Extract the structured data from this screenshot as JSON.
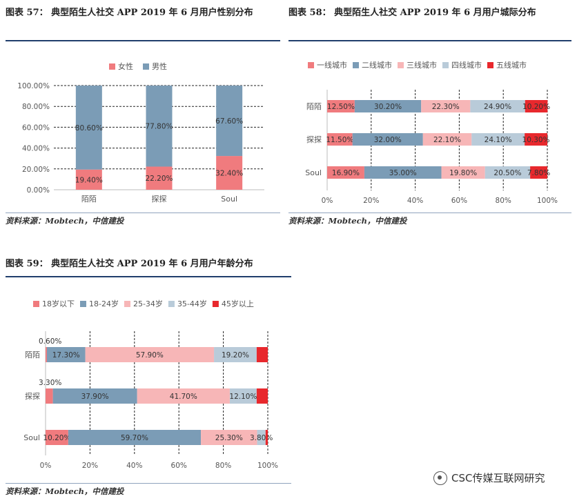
{
  "panels": [
    {
      "title": "图表 57： 典型陌生人社交 APP 2019 年 6 月用户性别分布",
      "source": "资料来源：Mobtech，中信建投"
    },
    {
      "title": "图表 58： 典型陌生人社交 APP 2019 年 6 月用户城际分布",
      "source": "资料来源：Mobtech，中信建投"
    },
    {
      "title": "图表 59： 典型陌生人社交 APP 2019 年 6 月用户年龄分布",
      "source": "资料来源：Mobtech，中信建投"
    }
  ],
  "watermark": "CSC传媒互联网研究",
  "chart_data": [
    {
      "type": "bar",
      "orientation": "vertical",
      "stacked": true,
      "categories": [
        "陌陌",
        "探探",
        "Soul"
      ],
      "series": [
        {
          "name": "女性",
          "color": "#f07b7e",
          "values": [
            19.4,
            22.2,
            32.4
          ],
          "labels": [
            "19.40%",
            "22.20%",
            "32.40%"
          ]
        },
        {
          "name": "男性",
          "color": "#7b9cb6",
          "values": [
            80.6,
            77.8,
            67.6
          ],
          "labels": [
            "80.60%",
            "77.80%",
            "67.60%"
          ]
        }
      ],
      "ylim": [
        0,
        100
      ],
      "yticks": [
        "0.00%",
        "20.00%",
        "40.00%",
        "60.00%",
        "80.00%",
        "100.00%"
      ],
      "legend": "top",
      "grid": "dashed-horizontal"
    },
    {
      "type": "bar",
      "orientation": "horizontal",
      "stacked": true,
      "categories": [
        "陌陌",
        "探探",
        "Soul"
      ],
      "series": [
        {
          "name": "一线城市",
          "color": "#f07b7e",
          "values": [
            12.5,
            11.5,
            16.9
          ],
          "labels": [
            "12.50%",
            "11.50%",
            "16.90%"
          ]
        },
        {
          "name": "二线城市",
          "color": "#7b9cb6",
          "values": [
            30.2,
            32.0,
            35.0
          ],
          "labels": [
            "30.20%",
            "32.00%",
            "35.00%"
          ]
        },
        {
          "name": "三线城市",
          "color": "#f7b6b7",
          "values": [
            22.3,
            22.1,
            19.8
          ],
          "labels": [
            "22.30%",
            "22.10%",
            "19.80%"
          ]
        },
        {
          "name": "四线城市",
          "color": "#b9cbd9",
          "values": [
            24.9,
            24.1,
            20.5
          ],
          "labels": [
            "24.90%",
            "24.10%",
            "20.50%"
          ]
        },
        {
          "name": "五线城市",
          "color": "#e8282d",
          "values": [
            10.2,
            10.3,
            7.8
          ],
          "labels": [
            "10.20%",
            "10.30%",
            "7.80%"
          ]
        }
      ],
      "xlim": [
        0,
        100
      ],
      "xticks": [
        "0%",
        "20%",
        "40%",
        "60%",
        "80%",
        "100%"
      ],
      "legend": "top",
      "grid": "dashed-vertical"
    },
    {
      "type": "bar",
      "orientation": "horizontal",
      "stacked": true,
      "categories": [
        "陌陌",
        "探探",
        "Soul"
      ],
      "series": [
        {
          "name": "18岁以下",
          "color": "#f07b7e",
          "values": [
            0.6,
            3.3,
            10.2
          ],
          "labels": [
            "0.60%",
            "3.30%",
            "10.20%"
          ]
        },
        {
          "name": "18-24岁",
          "color": "#7b9cb6",
          "values": [
            17.3,
            37.9,
            59.7
          ],
          "labels": [
            "17.30%",
            "37.90%",
            "59.70%"
          ]
        },
        {
          "name": "25-34岁",
          "color": "#f7b6b7",
          "values": [
            57.9,
            41.7,
            25.3
          ],
          "labels": [
            "57.90%",
            "41.70%",
            "25.30%"
          ]
        },
        {
          "name": "35-44岁",
          "color": "#b9cbd9",
          "values": [
            19.2,
            12.1,
            3.8
          ],
          "labels": [
            "19.20%",
            "12.10%",
            "3.80%"
          ]
        },
        {
          "name": "45岁以上",
          "color": "#e8282d",
          "values": [
            5.0,
            5.0,
            1.0
          ],
          "labels": [
            "",
            "",
            ""
          ]
        }
      ],
      "xlim": [
        0,
        100
      ],
      "xticks": [
        "0%",
        "20%",
        "40%",
        "60%",
        "80%",
        "100%"
      ],
      "legend": "top",
      "grid": "dashed-vertical"
    }
  ]
}
